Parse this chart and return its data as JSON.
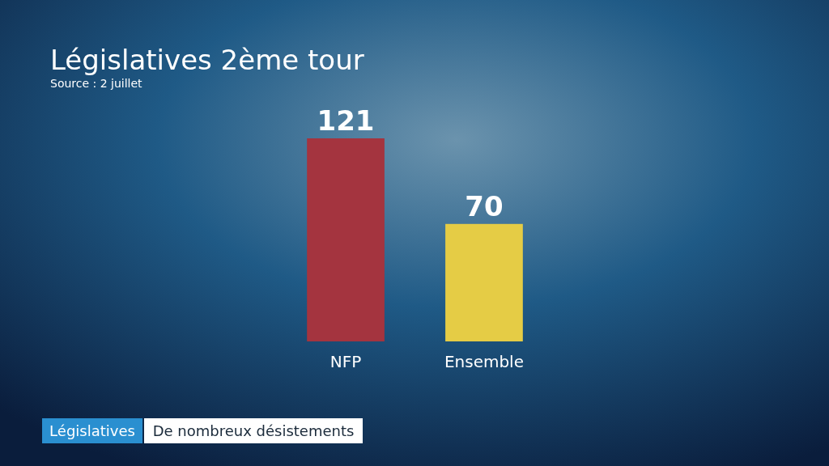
{
  "chart_data": {
    "type": "bar",
    "title": "Législatives 2ème tour",
    "subtitle": "Source : 2 juillet",
    "categories": [
      "NFP",
      "Ensemble"
    ],
    "values": [
      121,
      70
    ],
    "colors": [
      "#a4343f",
      "#e5cc45"
    ],
    "data_labels": true,
    "annotations": [
      "Législatives",
      "De nombreux désistements"
    ]
  }
}
